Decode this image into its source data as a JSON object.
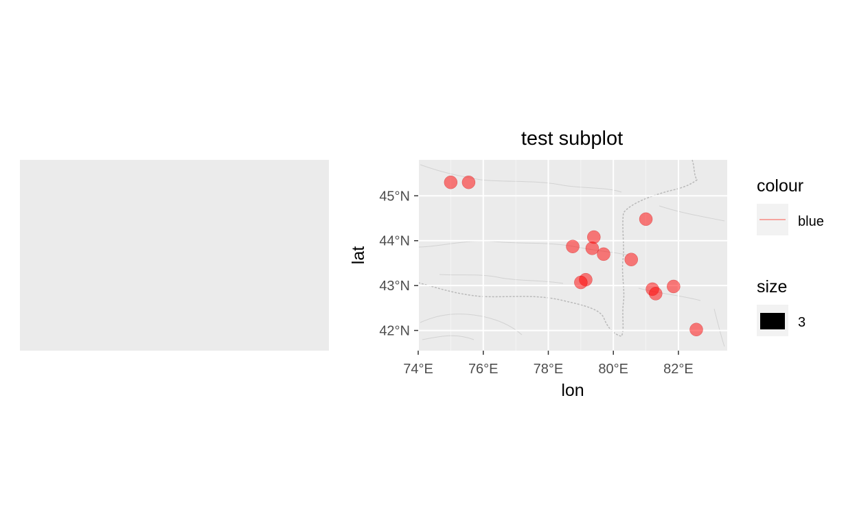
{
  "chart_data": [
    {
      "type": "scatter",
      "title": "test subplot",
      "xlabel": "lon",
      "ylabel": "lat",
      "xlim": [
        74.0,
        83.5
      ],
      "ylim": [
        41.55,
        45.8
      ],
      "x_ticks": [
        {
          "value": 74,
          "label": "74°E"
        },
        {
          "value": 76,
          "label": "76°E"
        },
        {
          "value": 78,
          "label": "78°E"
        },
        {
          "value": 80,
          "label": "80°E"
        },
        {
          "value": 82,
          "label": "82°E"
        }
      ],
      "y_ticks": [
        {
          "value": 42,
          "label": "42°N"
        },
        {
          "value": 43,
          "label": "43°N"
        },
        {
          "value": 44,
          "label": "44°N"
        },
        {
          "value": 45,
          "label": "45°N"
        }
      ],
      "grid": true,
      "background": "#ebebeb",
      "point_color": "#ff0000",
      "point_opacity": 0.5,
      "points": [
        {
          "lon": 75.0,
          "lat": 45.3
        },
        {
          "lon": 75.55,
          "lat": 45.3
        },
        {
          "lon": 81.0,
          "lat": 44.48
        },
        {
          "lon": 79.4,
          "lat": 44.08
        },
        {
          "lon": 78.75,
          "lat": 43.87
        },
        {
          "lon": 79.35,
          "lat": 43.83
        },
        {
          "lon": 79.7,
          "lat": 43.7
        },
        {
          "lon": 80.55,
          "lat": 43.58
        },
        {
          "lon": 79.15,
          "lat": 43.13
        },
        {
          "lon": 79.0,
          "lat": 43.07
        },
        {
          "lon": 81.85,
          "lat": 42.98
        },
        {
          "lon": 81.2,
          "lat": 42.92
        },
        {
          "lon": 81.3,
          "lat": 42.82
        },
        {
          "lon": 82.55,
          "lat": 42.02
        }
      ],
      "legend": [
        {
          "title": "colour",
          "items": [
            {
              "label": "blue",
              "key": "line",
              "color": "#f8766d"
            }
          ]
        },
        {
          "title": "size",
          "items": [
            {
              "label": "3",
              "key": "square",
              "color": "#000000"
            }
          ]
        }
      ],
      "legend_position": "right"
    },
    {
      "type": "scatter",
      "title": "",
      "xlabel": "",
      "ylabel": "",
      "background": "#ebebeb",
      "points": []
    }
  ]
}
